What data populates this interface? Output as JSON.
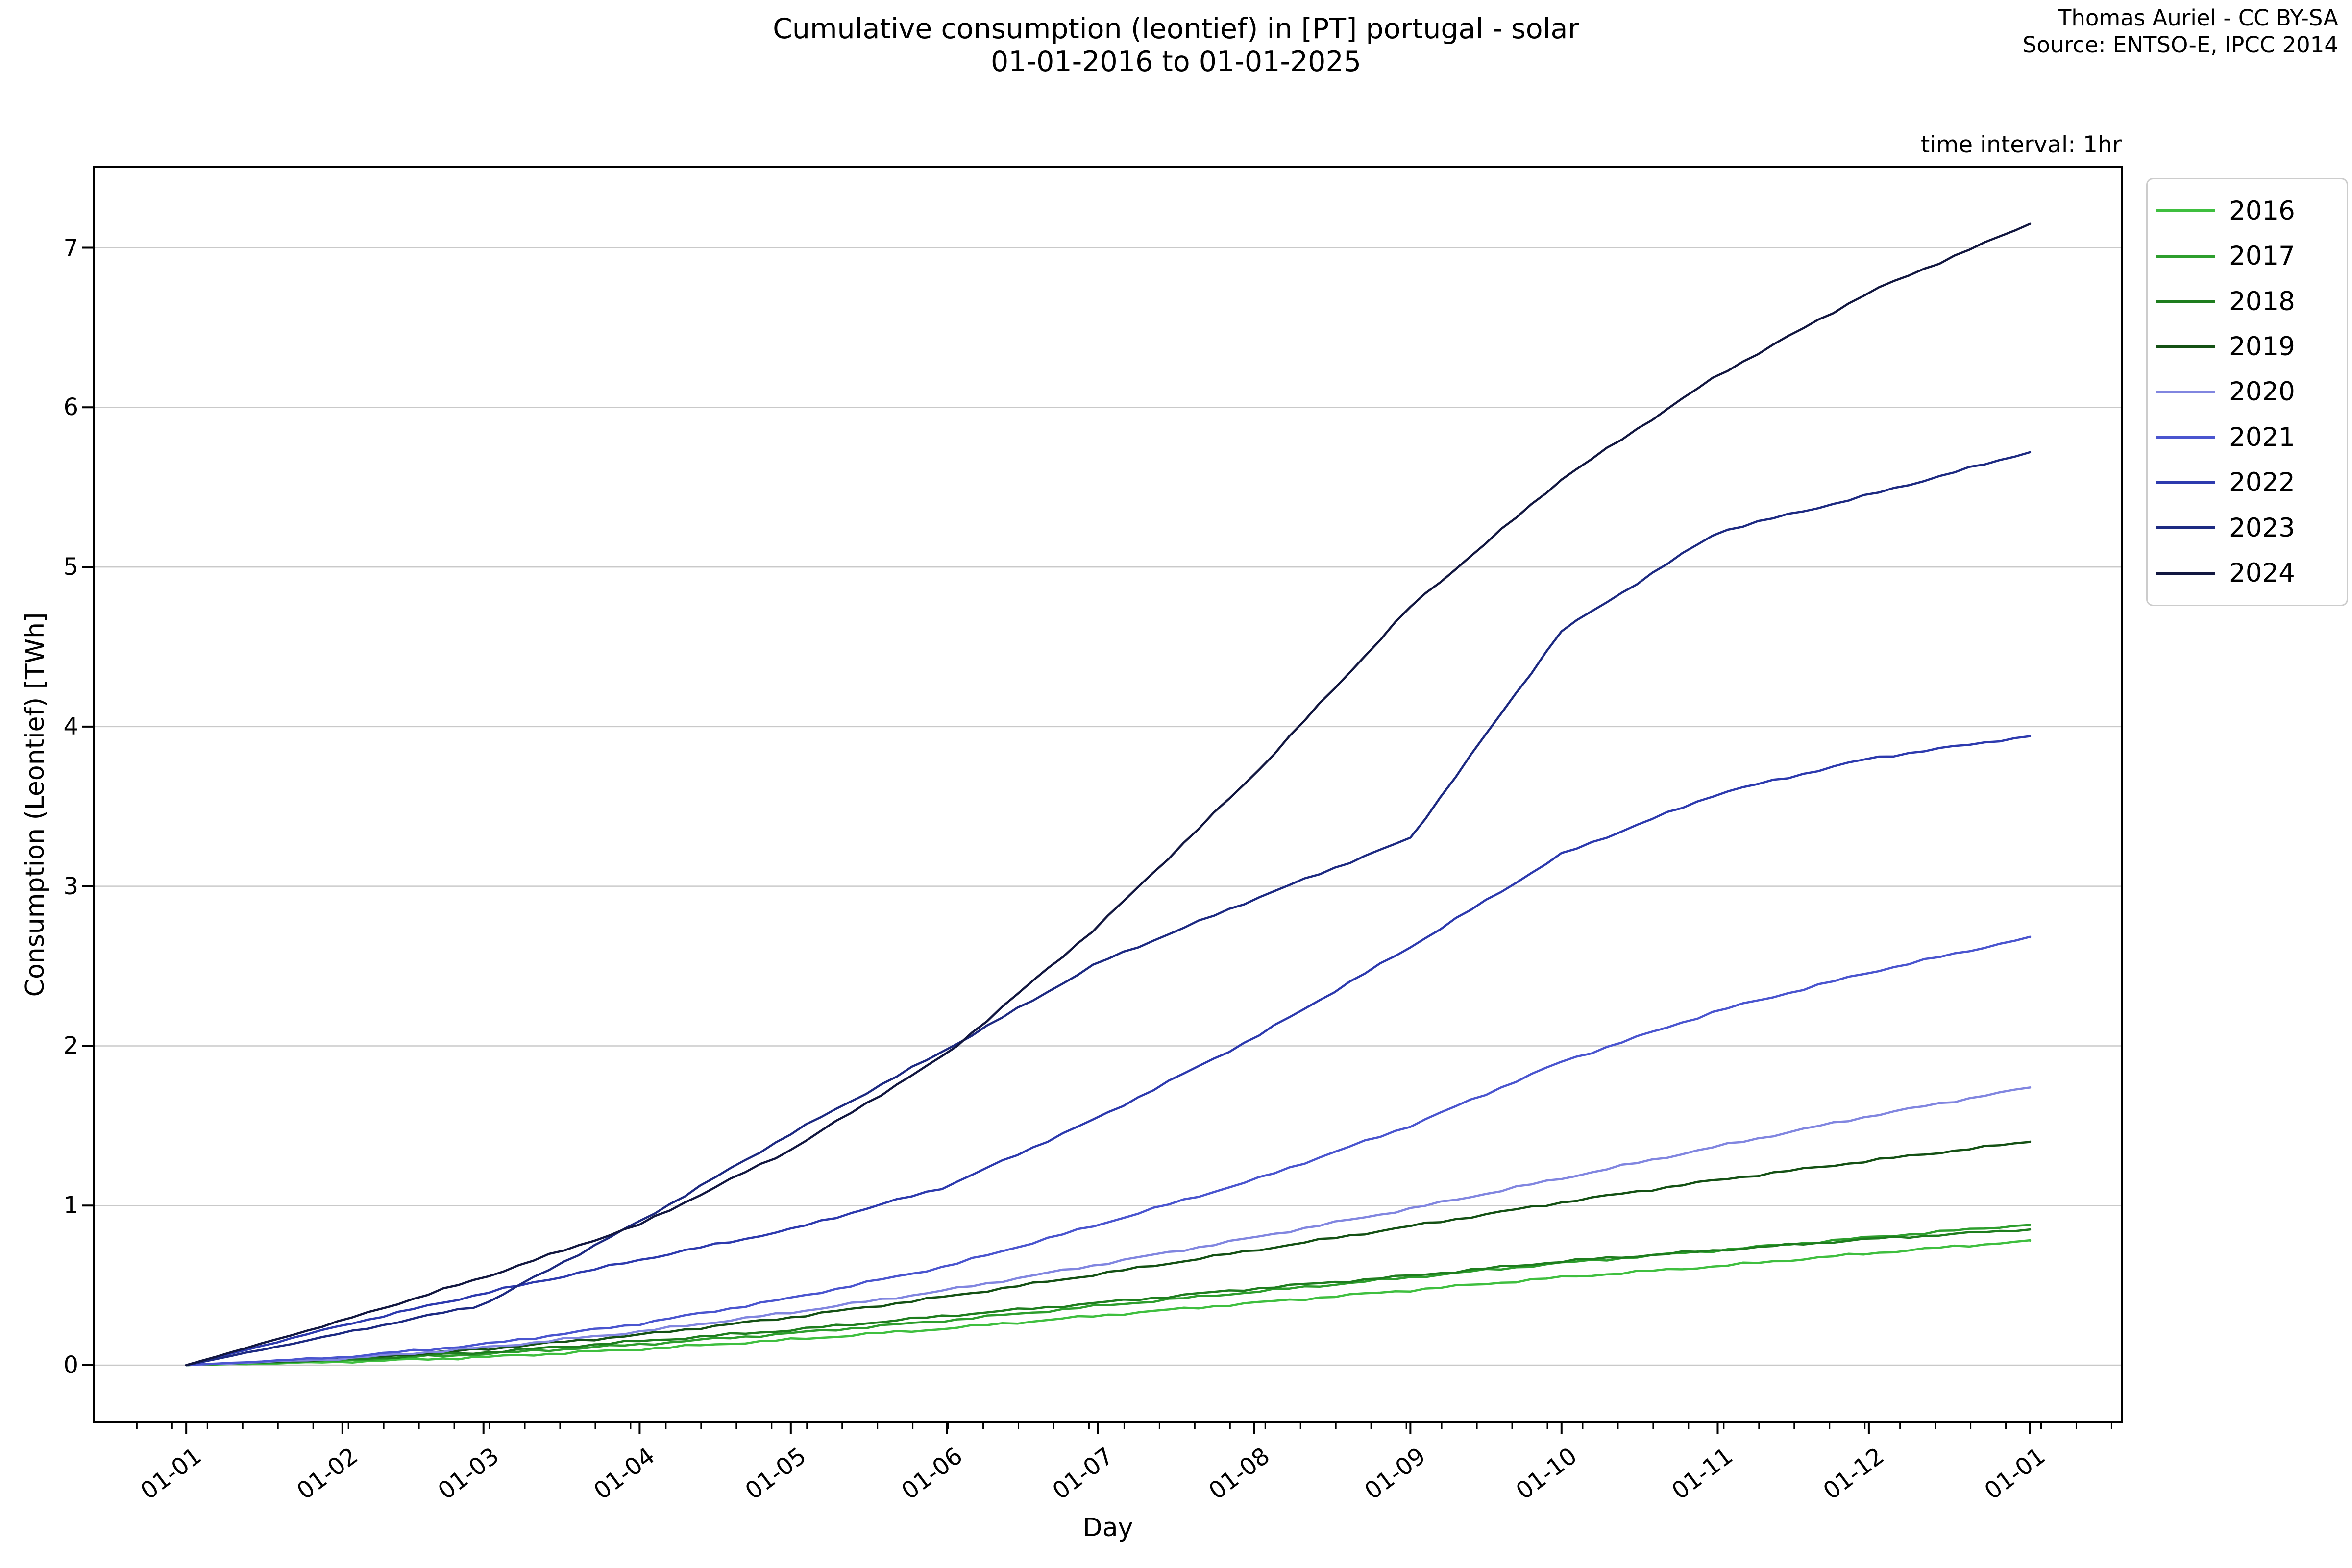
{
  "header": {
    "title_line1": "Cumulative consumption (leontief) in [PT] portugal - solar",
    "title_line2": "01-01-2016 to 01-01-2025",
    "attribution_line1": "Thomas Auriel - CC BY-SA",
    "attribution_line2": "Source: ENTSO-E, IPCC 2014",
    "time_interval_note": "time interval: 1hr"
  },
  "chart_data": {
    "type": "line",
    "title": "Cumulative consumption (leontief) in [PT] portugal - solar 01-01-2016 to 01-01-2025",
    "xlabel": "Day",
    "ylabel": "Consumption (Leontief) [TWh]",
    "x_unit": "day of year",
    "grid": "horizontal",
    "legend_position": "outside upper right",
    "y_ticks": [
      "0",
      "1",
      "2",
      "3",
      "4",
      "5",
      "6",
      "7"
    ],
    "y_tick_values": [
      0,
      1,
      2,
      3,
      4,
      5,
      6,
      7
    ],
    "ylim": [
      -0.359,
      7.505
    ],
    "xlim_days": [
      -18.3,
      384.2
    ],
    "x_tick_labels": [
      "01-01",
      "01-02",
      "01-03",
      "01-04",
      "01-05",
      "01-06",
      "01-07",
      "01-08",
      "01-09",
      "01-10",
      "01-11",
      "01-12",
      "01-01"
    ],
    "x_tick_days": [
      0,
      31,
      59,
      90,
      120,
      151,
      181,
      212,
      243,
      273,
      304,
      334,
      366
    ],
    "minor_tick_step_days": 7,
    "minor_tick_start_day": -9.8,
    "waypoint_days": [
      0,
      31,
      59,
      90,
      120,
      151,
      181,
      212,
      243,
      273,
      304,
      334,
      366
    ],
    "series": [
      {
        "name": "2016",
        "color": "#3fbf3f",
        "values": [
          0,
          0.02,
          0.05,
          0.1,
          0.16,
          0.23,
          0.31,
          0.39,
          0.47,
          0.55,
          0.62,
          0.7,
          0.78
        ]
      },
      {
        "name": "2017",
        "color": "#2d9e2d",
        "values": [
          0,
          0.03,
          0.07,
          0.13,
          0.2,
          0.28,
          0.37,
          0.46,
          0.55,
          0.64,
          0.72,
          0.8,
          0.88
        ]
      },
      {
        "name": "2018",
        "color": "#1e7d1e",
        "values": [
          0,
          0.035,
          0.08,
          0.15,
          0.22,
          0.31,
          0.39,
          0.48,
          0.56,
          0.65,
          0.72,
          0.79,
          0.85
        ]
      },
      {
        "name": "2019",
        "color": "#145114",
        "values": [
          0,
          0.04,
          0.1,
          0.19,
          0.3,
          0.43,
          0.57,
          0.72,
          0.87,
          1.02,
          1.16,
          1.28,
          1.4
        ]
      },
      {
        "name": "2020",
        "color": "#8186e0",
        "values": [
          0,
          0.04,
          0.11,
          0.21,
          0.33,
          0.47,
          0.63,
          0.8,
          0.98,
          1.17,
          1.37,
          1.56,
          1.74
        ]
      },
      {
        "name": "2021",
        "color": "#4a55cf",
        "values": [
          0,
          0.05,
          0.13,
          0.26,
          0.42,
          0.62,
          0.88,
          1.16,
          1.5,
          1.9,
          2.22,
          2.46,
          2.68
        ]
      },
      {
        "name": "2022",
        "color": "#2d3aae",
        "values": [
          0,
          0.25,
          0.45,
          0.66,
          0.85,
          1.12,
          1.55,
          2.05,
          2.62,
          3.2,
          3.58,
          3.8,
          3.94
        ]
      },
      {
        "name": "2023",
        "color": "#1d2a82",
        "values": [
          0,
          0.2,
          0.38,
          0.9,
          1.45,
          1.98,
          2.52,
          2.92,
          3.3,
          4.6,
          5.22,
          5.45,
          5.72
        ]
      },
      {
        "name": "2024",
        "color": "#121740",
        "values": [
          0,
          0.28,
          0.55,
          0.88,
          1.35,
          1.95,
          2.75,
          3.7,
          4.75,
          5.55,
          6.2,
          6.72,
          7.15
        ]
      }
    ],
    "colors": {
      "grid": "#c9c9c9",
      "spine": "#000000",
      "background": "#ffffff"
    }
  }
}
